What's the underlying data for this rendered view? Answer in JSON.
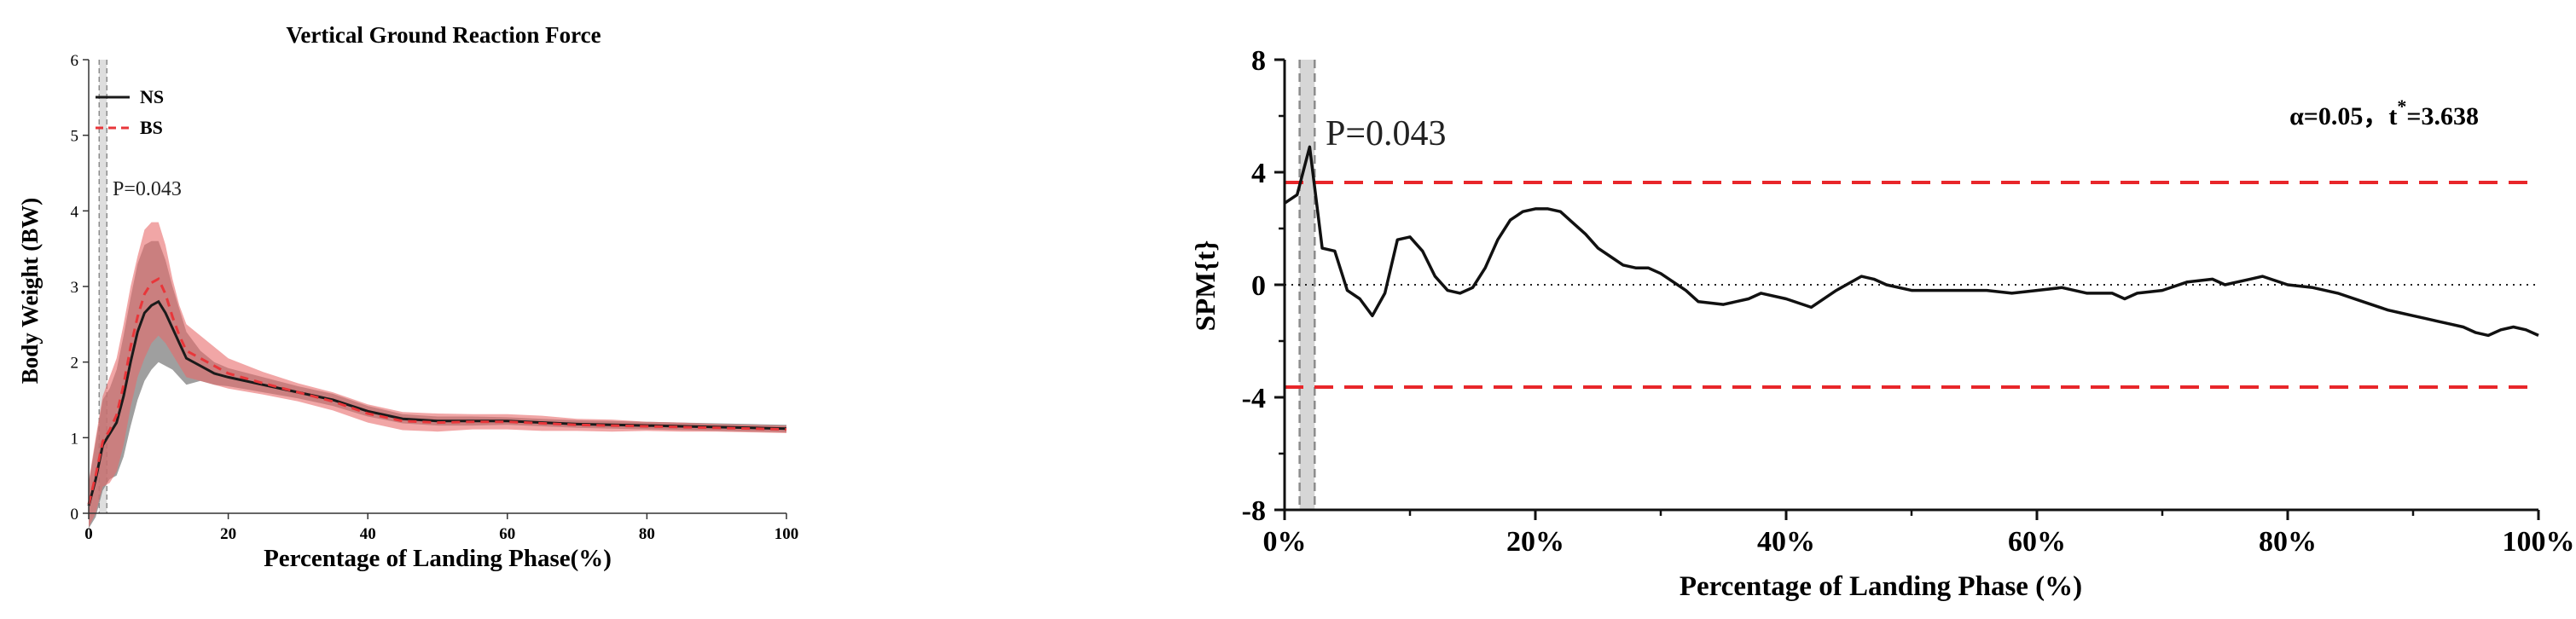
{
  "colors": {
    "ns": "#1a1a1a",
    "ns_band": "#7f7f7f",
    "bs": "#e8363a",
    "bs_band": "#e86a6a",
    "p_region": "#c8c8c8",
    "threshold": "#e8262a"
  },
  "chart_data": [
    {
      "type": "line",
      "title": "Vertical Ground Reaction Force",
      "xlabel": "Percentage of Landing Phase(%)",
      "ylabel": "Body Weight (BW)",
      "xlim": [
        0,
        100
      ],
      "ylim": [
        0,
        6
      ],
      "x_ticks": [
        "0",
        "20",
        "40",
        "60",
        "80",
        "100"
      ],
      "y_ticks": [
        "0",
        "1",
        "2",
        "3",
        "4",
        "5",
        "6"
      ],
      "grid": false,
      "legend_position": "top-left",
      "annotation": "P=0.043",
      "significant_region": [
        1.5,
        2.6
      ],
      "x": [
        0,
        1,
        2,
        3,
        4,
        5,
        6,
        7,
        8,
        9,
        10,
        11,
        12,
        13,
        14,
        16,
        18,
        20,
        25,
        30,
        35,
        40,
        45,
        50,
        55,
        60,
        65,
        70,
        75,
        80,
        85,
        90,
        95,
        100
      ],
      "series": [
        {
          "name": "NS",
          "style": "solid",
          "values": [
            0.1,
            0.45,
            0.9,
            1.05,
            1.2,
            1.55,
            2.0,
            2.4,
            2.65,
            2.75,
            2.8,
            2.65,
            2.45,
            2.25,
            2.05,
            1.95,
            1.85,
            1.8,
            1.7,
            1.6,
            1.5,
            1.35,
            1.25,
            1.22,
            1.22,
            1.22,
            1.2,
            1.18,
            1.17,
            1.16,
            1.15,
            1.14,
            1.13,
            1.12
          ],
          "band": [
            0.3,
            0.5,
            0.6,
            0.6,
            0.7,
            0.8,
            0.85,
            0.9,
            0.9,
            0.85,
            0.8,
            0.7,
            0.55,
            0.45,
            0.35,
            0.2,
            0.15,
            0.12,
            0.1,
            0.08,
            0.08,
            0.07,
            0.06,
            0.06,
            0.06,
            0.05,
            0.05,
            0.05,
            0.05,
            0.05,
            0.05,
            0.05,
            0.05,
            0.05
          ]
        },
        {
          "name": "BS",
          "style": "dashed",
          "values": [
            0.12,
            0.5,
            0.95,
            1.1,
            1.3,
            1.7,
            2.2,
            2.6,
            2.9,
            3.05,
            3.1,
            2.9,
            2.6,
            2.35,
            2.15,
            2.05,
            1.95,
            1.85,
            1.72,
            1.6,
            1.48,
            1.32,
            1.22,
            1.2,
            1.21,
            1.21,
            1.19,
            1.17,
            1.16,
            1.15,
            1.14,
            1.13,
            1.12,
            1.11
          ],
          "band": [
            0.3,
            0.5,
            0.6,
            0.7,
            0.75,
            0.8,
            0.8,
            0.8,
            0.85,
            0.8,
            0.75,
            0.65,
            0.5,
            0.4,
            0.35,
            0.3,
            0.25,
            0.2,
            0.15,
            0.12,
            0.12,
            0.12,
            0.12,
            0.12,
            0.1,
            0.1,
            0.1,
            0.08,
            0.08,
            0.06,
            0.06,
            0.05,
            0.05,
            0.05
          ]
        }
      ]
    },
    {
      "type": "line",
      "title": "",
      "xlabel": "Percentage of Landing Phase (%)",
      "ylabel": "SPM{t}",
      "xlim": [
        0,
        100
      ],
      "ylim": [
        -8,
        8
      ],
      "x_ticks": [
        "0%",
        "20%",
        "40%",
        "60%",
        "80%",
        "100%"
      ],
      "y_ticks": [
        "-8",
        "-4",
        "0",
        "4",
        "8"
      ],
      "grid": false,
      "annotation": "P=0.043",
      "threshold_text_prefix": "α=0.05，t",
      "threshold_text_sup": "*",
      "threshold_text_value": "=3.638",
      "threshold": 3.638,
      "significant_region": [
        1.2,
        2.4
      ],
      "zero_line": 0,
      "series": [
        {
          "name": "SPM{t}",
          "x": [
            0,
            1,
            2,
            3,
            4,
            5,
            6,
            7,
            8,
            9,
            10,
            11,
            12,
            13,
            14,
            15,
            16,
            17,
            18,
            19,
            20,
            21,
            22,
            23,
            24,
            25,
            26,
            27,
            28,
            29,
            30,
            32,
            33,
            35,
            37,
            38,
            40,
            42,
            44,
            46,
            47,
            48,
            50,
            52,
            54,
            56,
            58,
            60,
            62,
            64,
            66,
            67,
            68,
            70,
            72,
            74,
            75,
            76,
            77,
            78,
            80,
            82,
            84,
            86,
            88,
            89,
            90,
            91,
            92,
            93,
            94,
            95,
            96,
            97,
            98,
            99,
            100
          ],
          "values": [
            2.9,
            3.2,
            4.9,
            1.3,
            1.2,
            -0.2,
            -0.5,
            -1.1,
            -0.3,
            1.6,
            1.7,
            1.2,
            0.3,
            -0.2,
            -0.3,
            -0.1,
            0.6,
            1.6,
            2.3,
            2.6,
            2.7,
            2.7,
            2.6,
            2.2,
            1.8,
            1.3,
            1.0,
            0.7,
            0.6,
            0.6,
            0.4,
            -0.2,
            -0.6,
            -0.7,
            -0.5,
            -0.3,
            -0.5,
            -0.8,
            -0.2,
            0.3,
            0.2,
            0.0,
            -0.2,
            -0.2,
            -0.2,
            -0.2,
            -0.3,
            -0.2,
            -0.1,
            -0.3,
            -0.3,
            -0.5,
            -0.3,
            -0.2,
            0.1,
            0.2,
            0.0,
            0.1,
            0.2,
            0.3,
            0.0,
            -0.1,
            -0.3,
            -0.6,
            -0.9,
            -1.0,
            -1.1,
            -1.2,
            -1.3,
            -1.4,
            -1.5,
            -1.7,
            -1.8,
            -1.6,
            -1.5,
            -1.6,
            -1.8
          ]
        }
      ]
    }
  ]
}
